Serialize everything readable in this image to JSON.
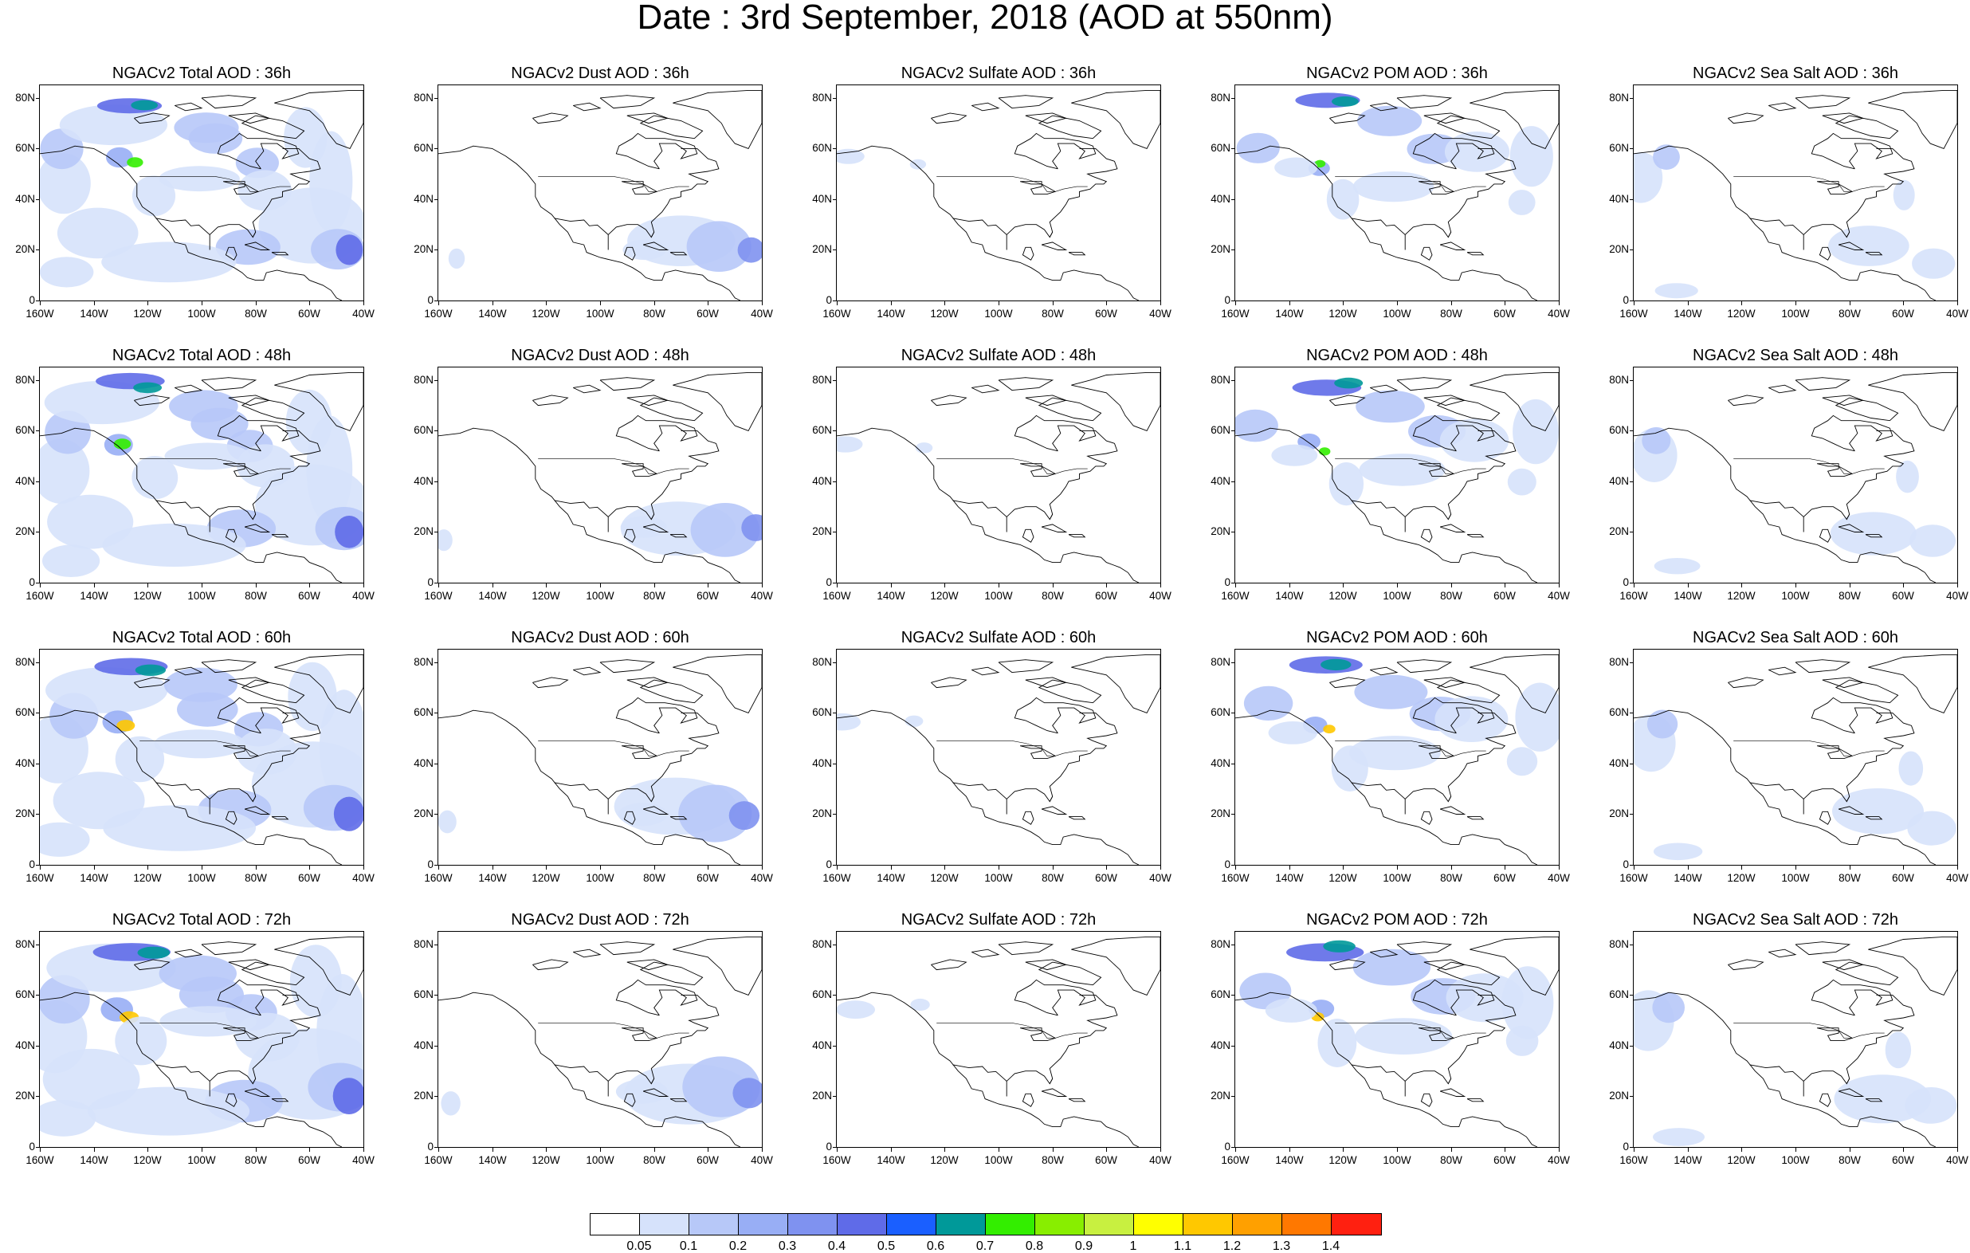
{
  "title": "Date : 3rd September, 2018 (AOD at 550nm)",
  "map_axes": {
    "lon_labels": [
      "160W",
      "140W",
      "120W",
      "100W",
      "80W",
      "60W",
      "40W"
    ],
    "lat_labels": [
      "0",
      "20N",
      "40N",
      "60N",
      "80N"
    ]
  },
  "panels": [
    {
      "title": "NGACv2 Total AOD : 36h",
      "species": "total",
      "hour": 36
    },
    {
      "title": "NGACv2 Dust AOD : 36h",
      "species": "dust",
      "hour": 36
    },
    {
      "title": "NGACv2 Sulfate AOD : 36h",
      "species": "sulfate",
      "hour": 36
    },
    {
      "title": "NGACv2 POM AOD : 36h",
      "species": "pom",
      "hour": 36
    },
    {
      "title": "NGACv2 Sea Salt AOD : 36h",
      "species": "seasalt",
      "hour": 36
    },
    {
      "title": "NGACv2 Total AOD : 48h",
      "species": "total",
      "hour": 48
    },
    {
      "title": "NGACv2 Dust AOD : 48h",
      "species": "dust",
      "hour": 48
    },
    {
      "title": "NGACv2 Sulfate AOD : 48h",
      "species": "sulfate",
      "hour": 48
    },
    {
      "title": "NGACv2 POM AOD : 48h",
      "species": "pom",
      "hour": 48
    },
    {
      "title": "NGACv2 Sea Salt AOD : 48h",
      "species": "seasalt",
      "hour": 48
    },
    {
      "title": "NGACv2 Total AOD : 60h",
      "species": "total",
      "hour": 60
    },
    {
      "title": "NGACv2 Dust AOD : 60h",
      "species": "dust",
      "hour": 60
    },
    {
      "title": "NGACv2 Sulfate AOD : 60h",
      "species": "sulfate",
      "hour": 60
    },
    {
      "title": "NGACv2 POM AOD : 60h",
      "species": "pom",
      "hour": 60
    },
    {
      "title": "NGACv2 Sea Salt AOD : 60h",
      "species": "seasalt",
      "hour": 60
    },
    {
      "title": "NGACv2 Total AOD : 72h",
      "species": "total",
      "hour": 72
    },
    {
      "title": "NGACv2 Dust AOD : 72h",
      "species": "dust",
      "hour": 72
    },
    {
      "title": "NGACv2 Sulfate AOD : 72h",
      "species": "sulfate",
      "hour": 72
    },
    {
      "title": "NGACv2 POM AOD : 72h",
      "species": "pom",
      "hour": 72
    },
    {
      "title": "NGACv2 Sea Salt  AOD : 72h",
      "species": "seasalt",
      "hour": 72
    }
  ],
  "colorbar": {
    "colors": [
      "#ffffff",
      "#d6e2fb",
      "#b7c8f8",
      "#98aef5",
      "#7f92f0",
      "#5f6be8",
      "#1a5fff",
      "#009999",
      "#33ee00",
      "#88ee00",
      "#c8f040",
      "#ffff00",
      "#ffc800",
      "#ffa000",
      "#ff7800",
      "#ff2010"
    ],
    "labels": [
      "0.05",
      "0.1",
      "0.2",
      "0.3",
      "0.4",
      "0.5",
      "0.6",
      "0.7",
      "0.8",
      "0.9",
      "1",
      "1.1",
      "1.2",
      "1.3",
      "1.4"
    ]
  }
}
